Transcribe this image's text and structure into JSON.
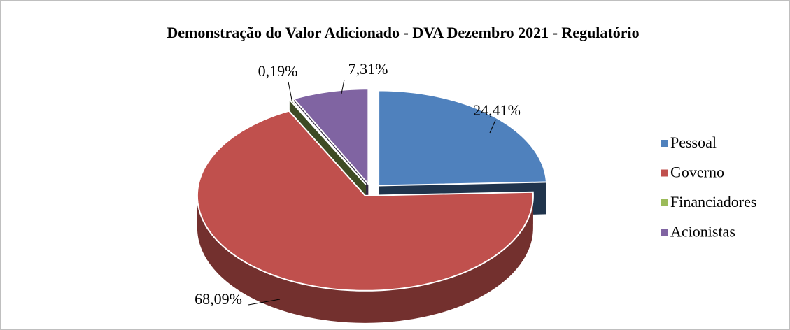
{
  "chart_data": {
    "type": "pie",
    "title": "Demonstração do Valor Adicionado - DVA Dezembro 2021 - Regulatório",
    "categories": [
      "Pessoal",
      "Governo",
      "Financiadores",
      "Acionistas"
    ],
    "values": [
      24.41,
      68.09,
      0.19,
      7.31
    ],
    "value_labels": [
      "24,41%",
      "68,09%",
      "0,19%",
      "7,31%"
    ],
    "colors": [
      "#4f81bd",
      "#c0504d",
      "#9bbb59",
      "#8064a2"
    ],
    "legend": "right"
  }
}
